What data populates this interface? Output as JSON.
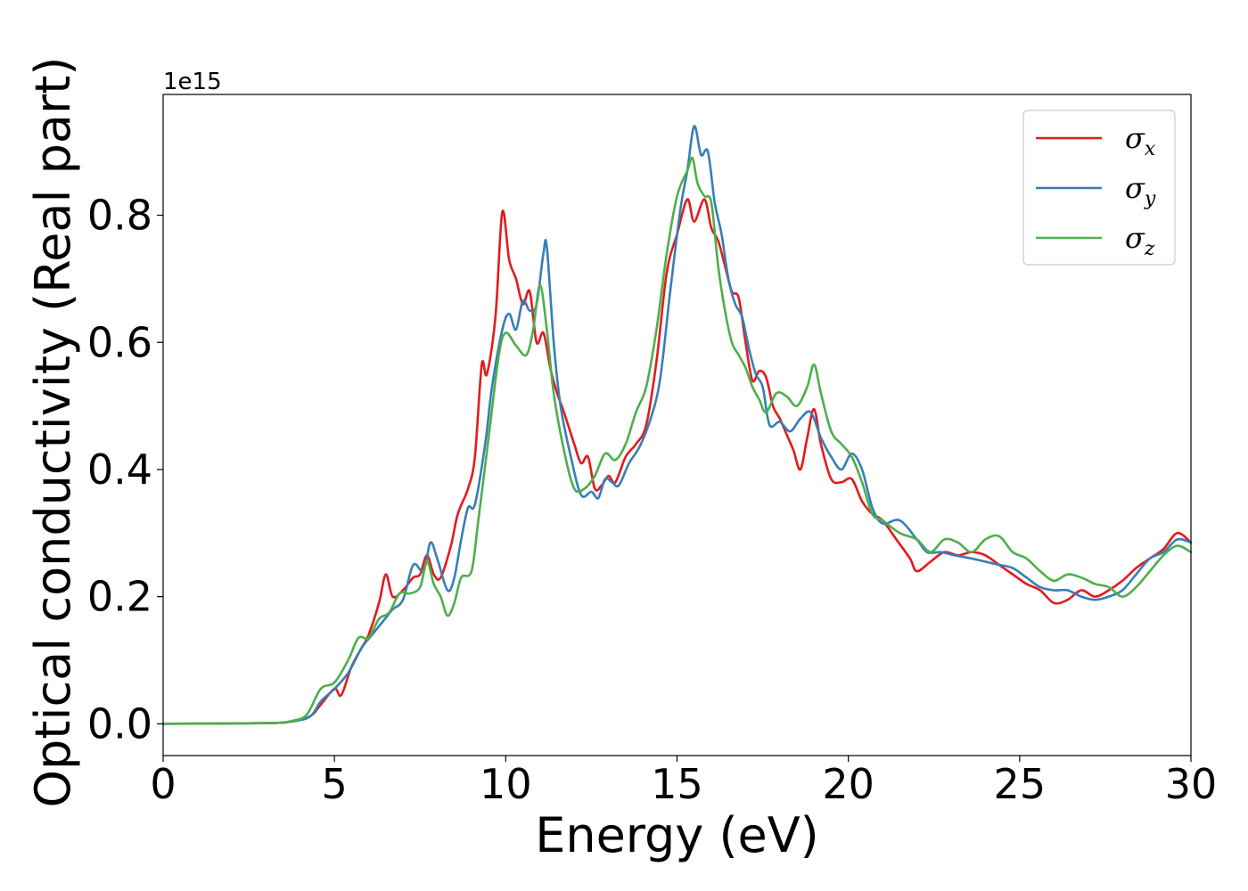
{
  "chart_data": {
    "type": "line",
    "xlabel": "Energy (eV)",
    "ylabel": "Optical conductivity (Real part)",
    "y_offset_label": "1e15",
    "xlim": [
      0,
      30
    ],
    "ylim": [
      -0.05,
      0.99
    ],
    "x_ticks": [
      0,
      5,
      10,
      15,
      20,
      25,
      30
    ],
    "x_tick_labels": [
      "0",
      "5",
      "10",
      "15",
      "20",
      "25",
      "30"
    ],
    "y_ticks": [
      0.0,
      0.2,
      0.4,
      0.6,
      0.8
    ],
    "y_tick_labels": [
      "0.0",
      "0.2",
      "0.4",
      "0.6",
      "0.8"
    ],
    "grid": false,
    "legend_position": "top-right",
    "series": [
      {
        "name": "σx",
        "symbol": "σ",
        "subscript": "x",
        "color": "#e41a1c",
        "points": [
          [
            0,
            0
          ],
          [
            3,
            0.001
          ],
          [
            3.8,
            0.004
          ],
          [
            4.3,
            0.012
          ],
          [
            4.6,
            0.03
          ],
          [
            5,
            0.055
          ],
          [
            5.2,
            0.045
          ],
          [
            5.5,
            0.09
          ],
          [
            5.8,
            0.12
          ],
          [
            6.0,
            0.14
          ],
          [
            6.3,
            0.19
          ],
          [
            6.5,
            0.235
          ],
          [
            6.7,
            0.2
          ],
          [
            7.0,
            0.21
          ],
          [
            7.3,
            0.23
          ],
          [
            7.5,
            0.235
          ],
          [
            7.7,
            0.265
          ],
          [
            7.9,
            0.235
          ],
          [
            8.1,
            0.23
          ],
          [
            8.4,
            0.28
          ],
          [
            8.6,
            0.33
          ],
          [
            8.9,
            0.37
          ],
          [
            9.1,
            0.42
          ],
          [
            9.3,
            0.565
          ],
          [
            9.45,
            0.55
          ],
          [
            9.7,
            0.64
          ],
          [
            9.9,
            0.805
          ],
          [
            10.1,
            0.73
          ],
          [
            10.3,
            0.7
          ],
          [
            10.5,
            0.66
          ],
          [
            10.7,
            0.68
          ],
          [
            10.9,
            0.6
          ],
          [
            11.1,
            0.615
          ],
          [
            11.3,
            0.56
          ],
          [
            11.5,
            0.52
          ],
          [
            11.7,
            0.49
          ],
          [
            12.0,
            0.44
          ],
          [
            12.2,
            0.41
          ],
          [
            12.4,
            0.42
          ],
          [
            12.6,
            0.37
          ],
          [
            12.8,
            0.375
          ],
          [
            13.0,
            0.39
          ],
          [
            13.2,
            0.38
          ],
          [
            13.5,
            0.42
          ],
          [
            13.8,
            0.44
          ],
          [
            14.1,
            0.47
          ],
          [
            14.4,
            0.57
          ],
          [
            14.7,
            0.71
          ],
          [
            15.0,
            0.77
          ],
          [
            15.3,
            0.825
          ],
          [
            15.5,
            0.79
          ],
          [
            15.8,
            0.825
          ],
          [
            16.0,
            0.78
          ],
          [
            16.2,
            0.76
          ],
          [
            16.4,
            0.72
          ],
          [
            16.6,
            0.68
          ],
          [
            16.8,
            0.67
          ],
          [
            17.0,
            0.6
          ],
          [
            17.2,
            0.54
          ],
          [
            17.4,
            0.555
          ],
          [
            17.6,
            0.545
          ],
          [
            17.8,
            0.5
          ],
          [
            18.0,
            0.48
          ],
          [
            18.2,
            0.455
          ],
          [
            18.4,
            0.43
          ],
          [
            18.6,
            0.4
          ],
          [
            18.8,
            0.45
          ],
          [
            19.0,
            0.495
          ],
          [
            19.2,
            0.44
          ],
          [
            19.5,
            0.385
          ],
          [
            19.8,
            0.38
          ],
          [
            20.1,
            0.385
          ],
          [
            20.4,
            0.35
          ],
          [
            20.7,
            0.33
          ],
          [
            21.0,
            0.32
          ],
          [
            21.4,
            0.29
          ],
          [
            21.8,
            0.26
          ],
          [
            22.0,
            0.24
          ],
          [
            22.4,
            0.255
          ],
          [
            22.8,
            0.27
          ],
          [
            23.2,
            0.265
          ],
          [
            23.6,
            0.27
          ],
          [
            24.0,
            0.265
          ],
          [
            24.4,
            0.25
          ],
          [
            24.8,
            0.235
          ],
          [
            25.2,
            0.22
          ],
          [
            25.6,
            0.21
          ],
          [
            26.0,
            0.19
          ],
          [
            26.4,
            0.195
          ],
          [
            26.8,
            0.21
          ],
          [
            27.2,
            0.2
          ],
          [
            27.6,
            0.21
          ],
          [
            28.0,
            0.225
          ],
          [
            28.4,
            0.245
          ],
          [
            28.8,
            0.26
          ],
          [
            29.2,
            0.275
          ],
          [
            29.6,
            0.3
          ],
          [
            30,
            0.285
          ]
        ]
      },
      {
        "name": "σy",
        "symbol": "σ",
        "subscript": "y",
        "color": "#377eb8",
        "points": [
          [
            0,
            0
          ],
          [
            3,
            0.001
          ],
          [
            3.8,
            0.004
          ],
          [
            4.3,
            0.012
          ],
          [
            4.6,
            0.035
          ],
          [
            5,
            0.055
          ],
          [
            5.4,
            0.08
          ],
          [
            5.8,
            0.12
          ],
          [
            6.1,
            0.14
          ],
          [
            6.4,
            0.16
          ],
          [
            6.7,
            0.18
          ],
          [
            7.0,
            0.195
          ],
          [
            7.3,
            0.25
          ],
          [
            7.6,
            0.24
          ],
          [
            7.8,
            0.285
          ],
          [
            8.0,
            0.26
          ],
          [
            8.3,
            0.21
          ],
          [
            8.5,
            0.23
          ],
          [
            8.7,
            0.29
          ],
          [
            8.9,
            0.34
          ],
          [
            9.1,
            0.345
          ],
          [
            9.4,
            0.44
          ],
          [
            9.6,
            0.53
          ],
          [
            9.9,
            0.62
          ],
          [
            10.1,
            0.645
          ],
          [
            10.3,
            0.62
          ],
          [
            10.5,
            0.665
          ],
          [
            10.7,
            0.65
          ],
          [
            10.9,
            0.66
          ],
          [
            11.1,
            0.74
          ],
          [
            11.2,
            0.75
          ],
          [
            11.4,
            0.6
          ],
          [
            11.6,
            0.5
          ],
          [
            11.9,
            0.42
          ],
          [
            12.2,
            0.36
          ],
          [
            12.5,
            0.365
          ],
          [
            12.7,
            0.355
          ],
          [
            12.9,
            0.385
          ],
          [
            13.1,
            0.38
          ],
          [
            13.3,
            0.375
          ],
          [
            13.6,
            0.41
          ],
          [
            13.9,
            0.435
          ],
          [
            14.2,
            0.475
          ],
          [
            14.5,
            0.54
          ],
          [
            14.8,
            0.68
          ],
          [
            15.1,
            0.81
          ],
          [
            15.3,
            0.87
          ],
          [
            15.5,
            0.94
          ],
          [
            15.7,
            0.895
          ],
          [
            15.9,
            0.9
          ],
          [
            16.1,
            0.82
          ],
          [
            16.3,
            0.77
          ],
          [
            16.5,
            0.7
          ],
          [
            16.7,
            0.66
          ],
          [
            16.9,
            0.64
          ],
          [
            17.1,
            0.59
          ],
          [
            17.3,
            0.55
          ],
          [
            17.5,
            0.53
          ],
          [
            17.7,
            0.47
          ],
          [
            18.0,
            0.475
          ],
          [
            18.3,
            0.46
          ],
          [
            18.6,
            0.48
          ],
          [
            18.9,
            0.49
          ],
          [
            19.2,
            0.45
          ],
          [
            19.5,
            0.42
          ],
          [
            19.8,
            0.4
          ],
          [
            20.1,
            0.425
          ],
          [
            20.4,
            0.4
          ],
          [
            20.7,
            0.34
          ],
          [
            21.0,
            0.315
          ],
          [
            21.5,
            0.32
          ],
          [
            22.0,
            0.29
          ],
          [
            22.3,
            0.27
          ],
          [
            22.7,
            0.27
          ],
          [
            23.1,
            0.265
          ],
          [
            23.6,
            0.26
          ],
          [
            24.0,
            0.255
          ],
          [
            24.4,
            0.25
          ],
          [
            24.8,
            0.245
          ],
          [
            25.2,
            0.23
          ],
          [
            25.6,
            0.215
          ],
          [
            26.0,
            0.21
          ],
          [
            26.4,
            0.21
          ],
          [
            26.8,
            0.2
          ],
          [
            27.2,
            0.195
          ],
          [
            27.6,
            0.2
          ],
          [
            28.0,
            0.21
          ],
          [
            28.4,
            0.235
          ],
          [
            28.8,
            0.26
          ],
          [
            29.2,
            0.27
          ],
          [
            29.6,
            0.29
          ],
          [
            30,
            0.285
          ]
        ]
      },
      {
        "name": "σz",
        "symbol": "σ",
        "subscript": "z",
        "color": "#4daf4a",
        "points": [
          [
            0,
            0
          ],
          [
            3,
            0.001
          ],
          [
            3.8,
            0.005
          ],
          [
            4.2,
            0.015
          ],
          [
            4.6,
            0.055
          ],
          [
            5,
            0.065
          ],
          [
            5.4,
            0.1
          ],
          [
            5.7,
            0.135
          ],
          [
            6.0,
            0.135
          ],
          [
            6.3,
            0.165
          ],
          [
            6.6,
            0.175
          ],
          [
            6.9,
            0.205
          ],
          [
            7.2,
            0.205
          ],
          [
            7.5,
            0.215
          ],
          [
            7.7,
            0.255
          ],
          [
            7.9,
            0.22
          ],
          [
            8.1,
            0.2
          ],
          [
            8.3,
            0.17
          ],
          [
            8.5,
            0.19
          ],
          [
            8.7,
            0.23
          ],
          [
            9.0,
            0.24
          ],
          [
            9.2,
            0.32
          ],
          [
            9.5,
            0.45
          ],
          [
            9.8,
            0.58
          ],
          [
            10.0,
            0.615
          ],
          [
            10.3,
            0.595
          ],
          [
            10.6,
            0.58
          ],
          [
            10.8,
            0.62
          ],
          [
            11.0,
            0.69
          ],
          [
            11.2,
            0.62
          ],
          [
            11.4,
            0.52
          ],
          [
            11.7,
            0.43
          ],
          [
            12.0,
            0.37
          ],
          [
            12.3,
            0.37
          ],
          [
            12.6,
            0.39
          ],
          [
            12.9,
            0.425
          ],
          [
            13.2,
            0.415
          ],
          [
            13.5,
            0.44
          ],
          [
            13.8,
            0.49
          ],
          [
            14.1,
            0.53
          ],
          [
            14.4,
            0.62
          ],
          [
            14.7,
            0.74
          ],
          [
            15.0,
            0.83
          ],
          [
            15.3,
            0.87
          ],
          [
            15.45,
            0.89
          ],
          [
            15.6,
            0.85
          ],
          [
            15.8,
            0.83
          ],
          [
            16.0,
            0.82
          ],
          [
            16.2,
            0.72
          ],
          [
            16.4,
            0.65
          ],
          [
            16.6,
            0.6
          ],
          [
            16.8,
            0.58
          ],
          [
            17.0,
            0.56
          ],
          [
            17.2,
            0.53
          ],
          [
            17.4,
            0.51
          ],
          [
            17.6,
            0.49
          ],
          [
            17.9,
            0.52
          ],
          [
            18.2,
            0.515
          ],
          [
            18.5,
            0.5
          ],
          [
            18.8,
            0.53
          ],
          [
            19.0,
            0.565
          ],
          [
            19.2,
            0.52
          ],
          [
            19.5,
            0.46
          ],
          [
            19.8,
            0.44
          ],
          [
            20.1,
            0.42
          ],
          [
            20.4,
            0.38
          ],
          [
            20.7,
            0.33
          ],
          [
            21.0,
            0.32
          ],
          [
            21.5,
            0.3
          ],
          [
            22.0,
            0.29
          ],
          [
            22.4,
            0.27
          ],
          [
            22.8,
            0.29
          ],
          [
            23.2,
            0.285
          ],
          [
            23.6,
            0.27
          ],
          [
            24.0,
            0.29
          ],
          [
            24.4,
            0.295
          ],
          [
            24.8,
            0.27
          ],
          [
            25.2,
            0.26
          ],
          [
            25.6,
            0.24
          ],
          [
            26.0,
            0.225
          ],
          [
            26.4,
            0.235
          ],
          [
            26.8,
            0.23
          ],
          [
            27.2,
            0.22
          ],
          [
            27.6,
            0.215
          ],
          [
            28.0,
            0.2
          ],
          [
            28.4,
            0.215
          ],
          [
            28.8,
            0.24
          ],
          [
            29.2,
            0.265
          ],
          [
            29.6,
            0.28
          ],
          [
            30,
            0.27
          ]
        ]
      }
    ]
  }
}
